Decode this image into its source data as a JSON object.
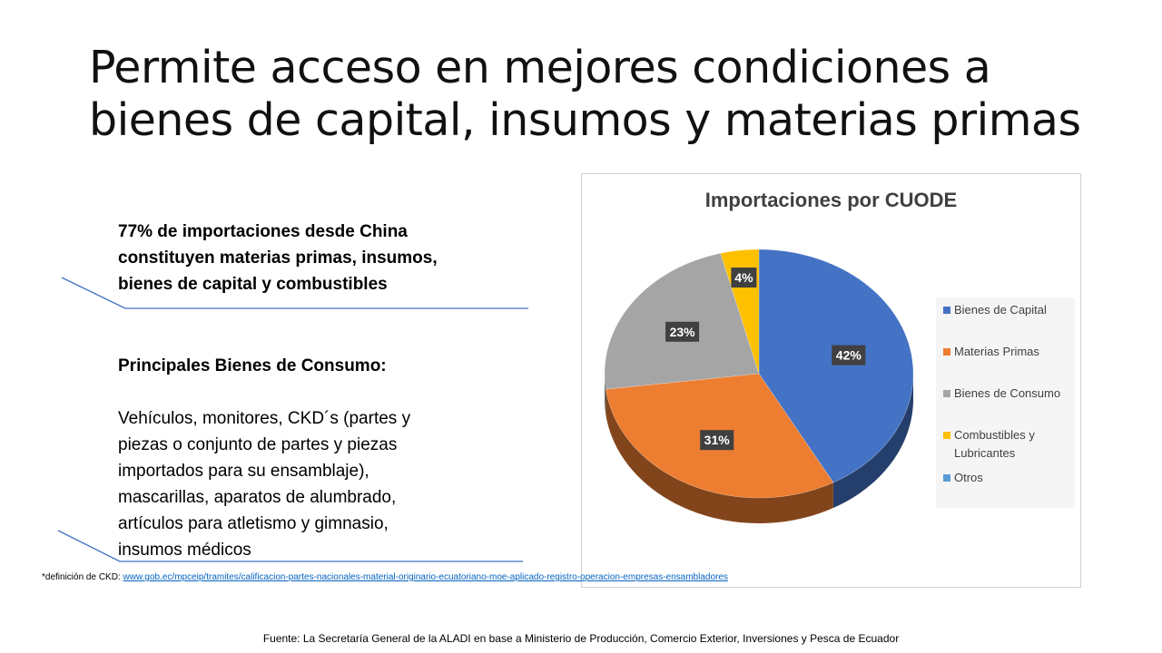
{
  "slide": {
    "title_line1": "Permite acceso en mejores condiciones a",
    "title_line2": "bienes de capital, insumos y materias primas",
    "left_block1": {
      "line1": "77% de importaciones desde China",
      "line2": "constituyen materias primas, insumos,",
      "line3": "bienes de capital y combustibles"
    },
    "left_block2": {
      "heading": "Principales Bienes de Consumo:",
      "lines": [
        "Vehículos, monitores, CKD´s (partes y",
        "piezas o conjunto de partes y piezas",
        "importados para su ensamblaje),",
        "mascarillas, aparatos de alumbrado,",
        "artículos para atletismo y gimnasio,",
        "insumos médicos"
      ]
    },
    "footnote_label": "*definición de CKD:",
    "footnote_link": "www.gob.ec/mpceip/tramites/calificacion-partes-nacionales-material-originario-ecuatoriano-moe-aplicado-registro-operacion-empresas-ensambladores",
    "source": "Fuente: La Secretaría General de la ALADI en base a Ministerio de Producción, Comercio Exterior, Inversiones y Pesca de Ecuador"
  },
  "chart_data": {
    "type": "pie",
    "style": "3d",
    "title": "Importaciones por CUODE",
    "legend_position": "right",
    "categories": [
      "Bienes de Capital",
      "Materias Primas",
      "Bienes de Consumo",
      "Combustibles y Lubricantes",
      "Otros"
    ],
    "values": [
      42,
      31,
      23,
      4,
      0
    ],
    "data_labels": [
      "42%",
      "31%",
      "23%",
      "4%",
      ""
    ],
    "colors": [
      "#4472c4",
      "#ed7d31",
      "#a5a5a5",
      "#ffc000",
      "#5b9bd5"
    ],
    "legend_lines": [
      [
        "Bienes de Capital"
      ],
      [
        "Materias Primas"
      ],
      [
        "Bienes de Consumo"
      ],
      [
        "Combustibles y",
        "Lubricantes"
      ],
      [
        "Otros"
      ]
    ]
  }
}
